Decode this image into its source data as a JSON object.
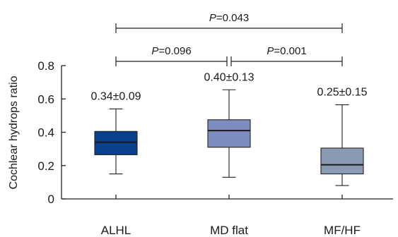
{
  "chart_data": {
    "type": "box",
    "ylabel": "Cochlear hydrops ratio",
    "ylim": [
      0,
      0.8
    ],
    "yticks": [
      0,
      0.2,
      0.4,
      0.6,
      0.8
    ],
    "ytick_labels": [
      "0",
      "0.2",
      "0.4",
      "0.6",
      "0.8"
    ],
    "grid": false,
    "categories": [
      "ALHL",
      "MD flat",
      "MF/HF"
    ],
    "boxes": [
      {
        "category": "ALHL",
        "min": 0.15,
        "q1": 0.265,
        "median": 0.34,
        "q3": 0.405,
        "max": 0.54,
        "color": "#0a3f8e",
        "annotation": "0.34±0.09"
      },
      {
        "category": "MD flat",
        "min": 0.13,
        "q1": 0.31,
        "median": 0.41,
        "q3": 0.475,
        "max": 0.655,
        "color": "#7e8dc0",
        "annotation": "0.40±0.13"
      },
      {
        "category": "MF/HF",
        "min": 0.08,
        "q1": 0.15,
        "median": 0.205,
        "q3": 0.305,
        "max": 0.565,
        "color": "#8a9bb3",
        "annotation": "0.25±0.15"
      }
    ],
    "comparisons": [
      {
        "from": "ALHL",
        "to": "MD flat",
        "p_symbol": "P",
        "p_text": "=0.096",
        "level": 1
      },
      {
        "from": "MD flat",
        "to": "MF/HF",
        "p_symbol": "P",
        "p_text": "=0.001",
        "level": 1
      },
      {
        "from": "ALHL",
        "to": "MF/HF",
        "p_symbol": "P",
        "p_text": "=0.043",
        "level": 2
      }
    ]
  }
}
